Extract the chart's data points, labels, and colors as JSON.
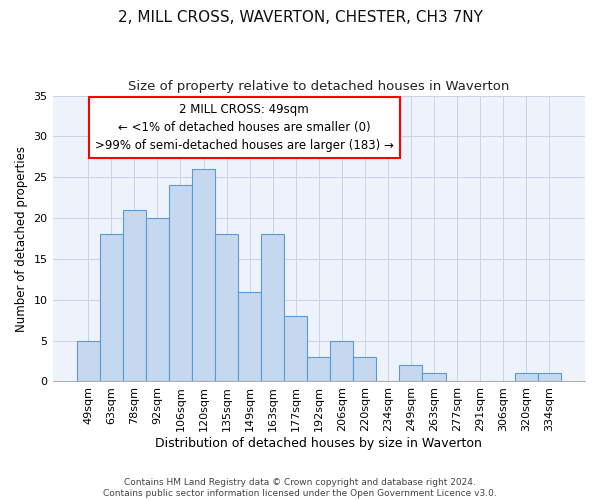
{
  "title": "2, MILL CROSS, WAVERTON, CHESTER, CH3 7NY",
  "subtitle": "Size of property relative to detached houses in Waverton",
  "xlabel": "Distribution of detached houses by size in Waverton",
  "ylabel": "Number of detached properties",
  "categories": [
    "49sqm",
    "63sqm",
    "78sqm",
    "92sqm",
    "106sqm",
    "120sqm",
    "135sqm",
    "149sqm",
    "163sqm",
    "177sqm",
    "192sqm",
    "206sqm",
    "220sqm",
    "234sqm",
    "249sqm",
    "263sqm",
    "277sqm",
    "291sqm",
    "306sqm",
    "320sqm",
    "334sqm"
  ],
  "values": [
    5,
    18,
    21,
    20,
    24,
    26,
    18,
    11,
    18,
    8,
    3,
    5,
    3,
    0,
    2,
    1,
    0,
    0,
    0,
    1,
    1
  ],
  "bar_color": "#c5d8f0",
  "bar_edge_color": "#5b9bd5",
  "box_edge_color": "red",
  "annotation_line1": "2 MILL CROSS: 49sqm",
  "annotation_line2": "← <1% of detached houses are smaller (0)",
  "annotation_line3": ">99% of semi-detached houses are larger (183) →",
  "ylim": [
    0,
    35
  ],
  "yticks": [
    0,
    5,
    10,
    15,
    20,
    25,
    30,
    35
  ],
  "grid_color": "#c8d4e8",
  "background_color": "#eef2fa",
  "footer_line1": "Contains HM Land Registry data © Crown copyright and database right 2024.",
  "footer_line2": "Contains public sector information licensed under the Open Government Licence v3.0.",
  "title_fontsize": 11,
  "subtitle_fontsize": 9.5,
  "xlabel_fontsize": 9,
  "ylabel_fontsize": 8.5,
  "tick_fontsize": 8,
  "annotation_fontsize": 8.5,
  "footer_fontsize": 6.5
}
